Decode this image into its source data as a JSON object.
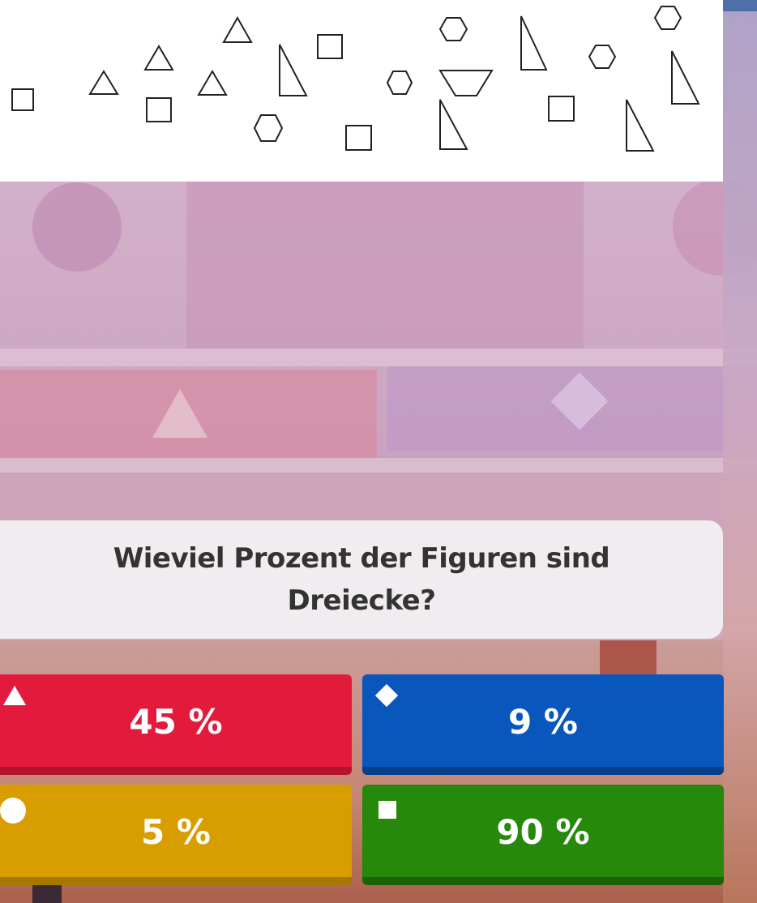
{
  "question": {
    "text": "Wieviel Prozent der Figuren sind Dreiecke?"
  },
  "answers": [
    {
      "label": "45 %",
      "symbol": "triangle-icon",
      "color": "#e21b3c"
    },
    {
      "label": "9 %",
      "symbol": "diamond-icon",
      "color": "#0957bd"
    },
    {
      "label": "5 %",
      "symbol": "circle-icon",
      "color": "#d89e00"
    },
    {
      "label": "90 %",
      "symbol": "square-icon",
      "color": "#26890c"
    }
  ],
  "image": {
    "shapes": [
      "square-icon",
      "triangle-icon",
      "triangle-icon",
      "square-icon",
      "triangle-icon",
      "triangle-icon",
      "hexagon-icon",
      "right-triangle-icon",
      "square-icon",
      "square-icon",
      "hexagon-icon",
      "hexagon-icon",
      "trapezoid-icon",
      "right-triangle-icon",
      "right-triangle-icon",
      "square-icon",
      "hexagon-icon",
      "right-triangle-icon",
      "hexagon-icon",
      "right-triangle-icon"
    ]
  }
}
